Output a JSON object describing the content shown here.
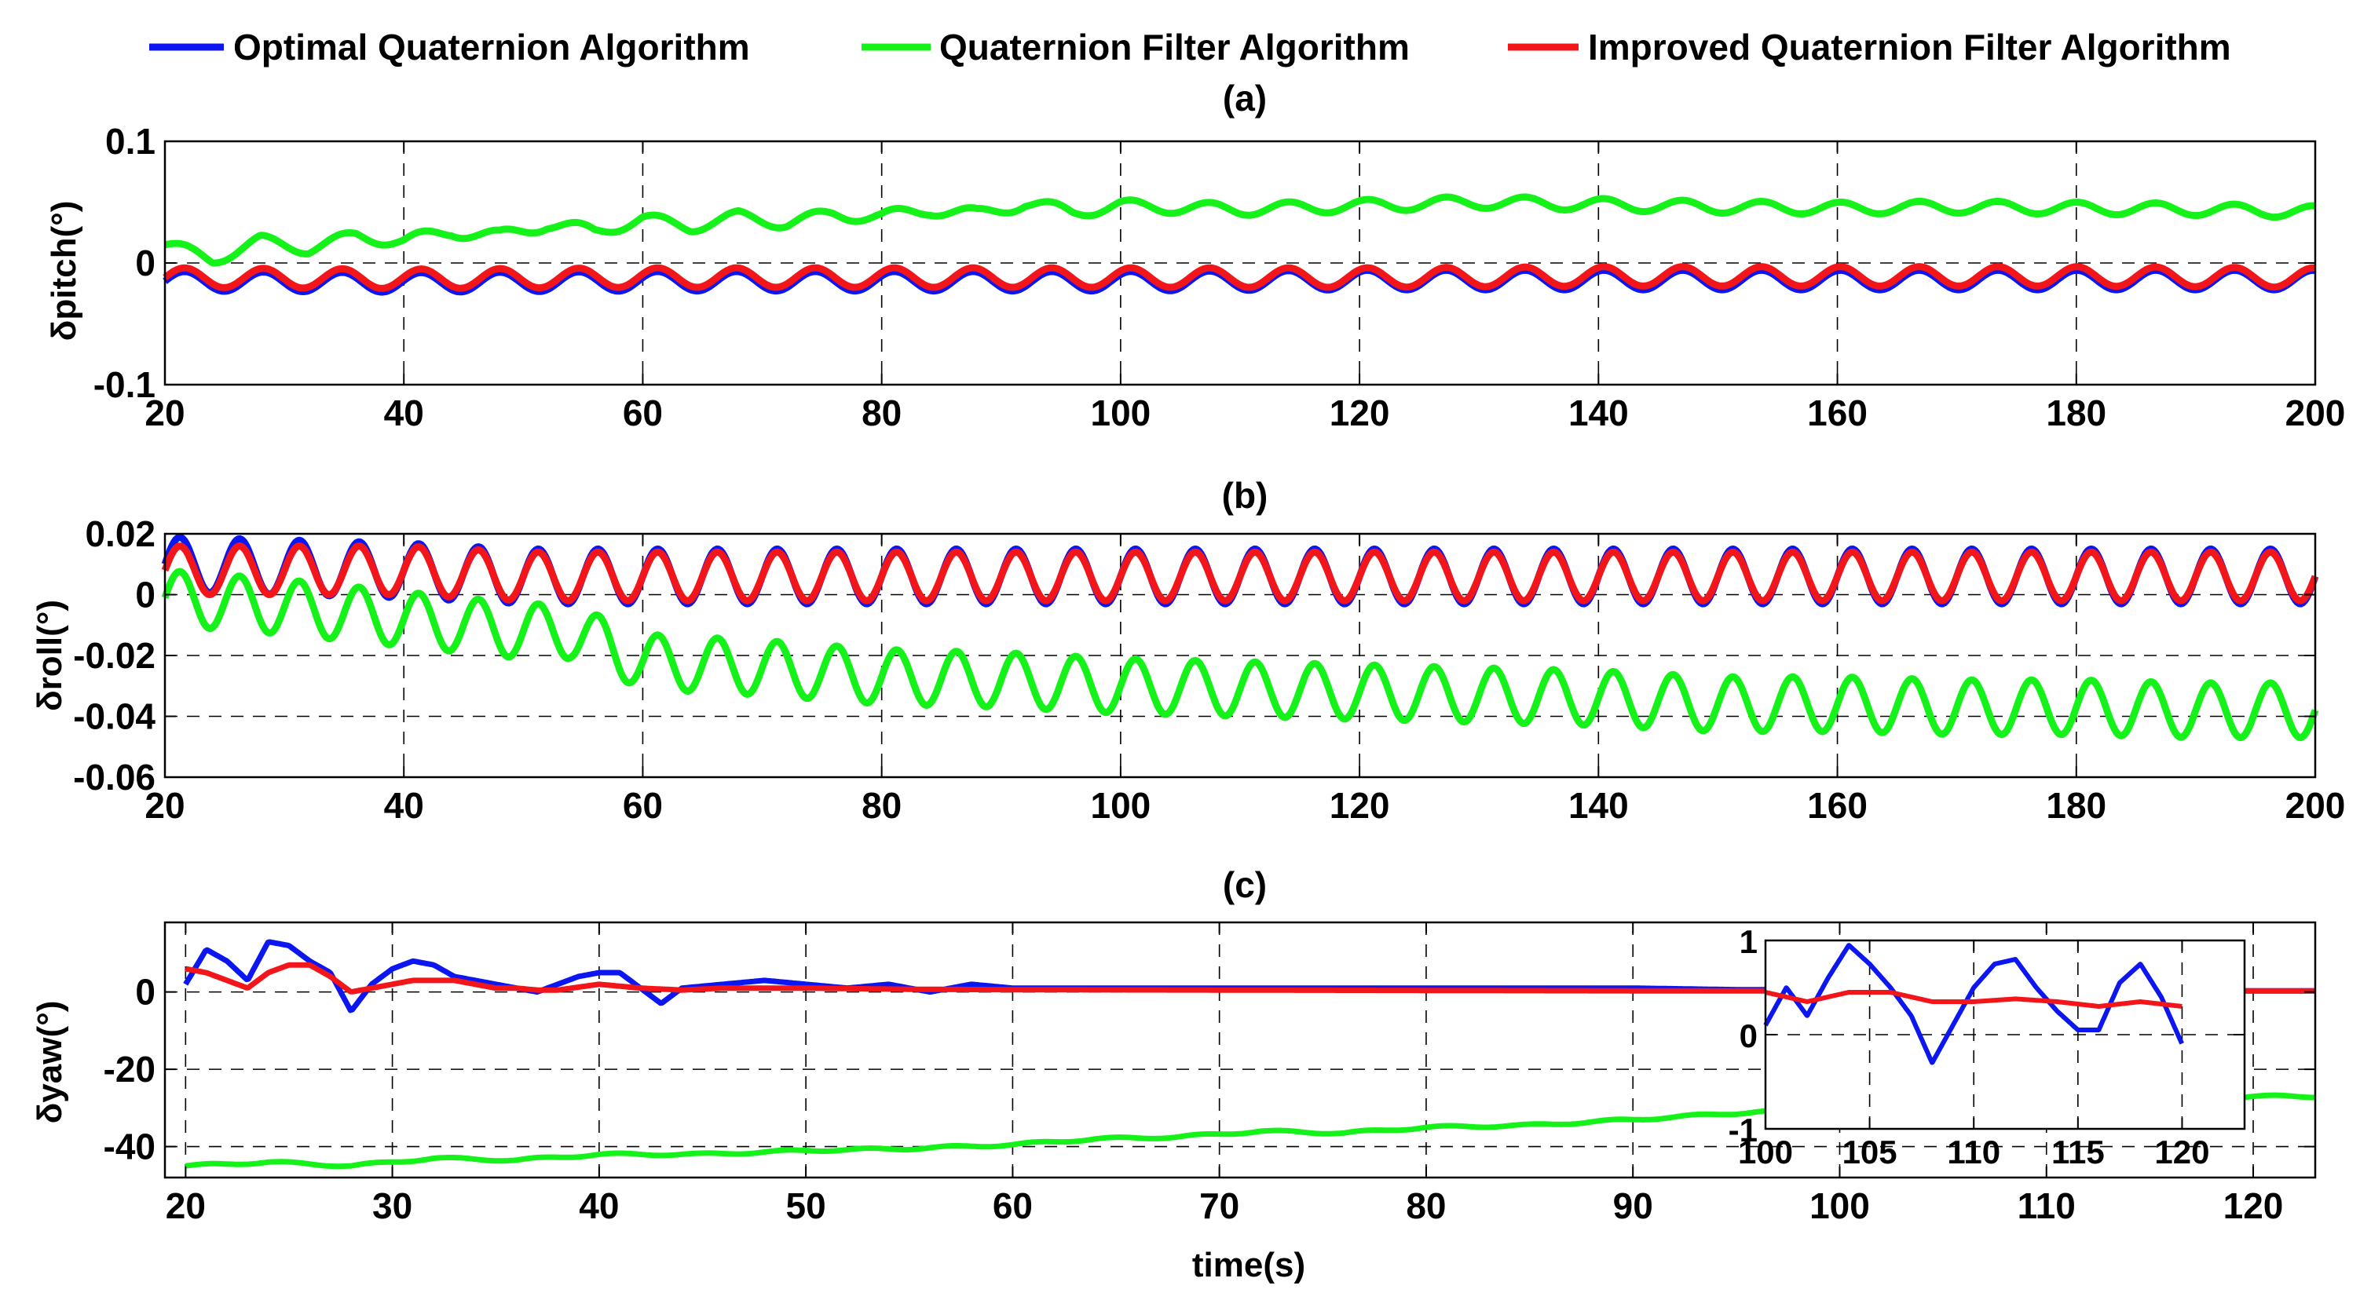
{
  "colors": {
    "optimal": "#0b16f0",
    "filter": "#15f21a",
    "improved": "#f2151a",
    "grid": "#000000",
    "axes": "#000000"
  },
  "legend": [
    {
      "key": "optimal",
      "label": "Optimal Quaternion Algorithm"
    },
    {
      "key": "filter",
      "label": "Quaternion Filter Algorithm"
    },
    {
      "key": "improved",
      "label": "Improved Quaternion Filter Algorithm"
    }
  ],
  "chart_data": [
    {
      "id": "a",
      "type": "line",
      "title": "(a)",
      "xlabel": "",
      "ylabel": "δpitch(°)",
      "xlim": [
        20,
        200
      ],
      "ylim": [
        -0.1,
        0.1
      ],
      "xticks": [
        20,
        40,
        60,
        80,
        100,
        120,
        140,
        160,
        180,
        200
      ],
      "xtick_labels": [
        "20",
        "40",
        "60",
        "80",
        "100",
        "120",
        "140",
        "160",
        "180",
        "200"
      ],
      "yticks": [
        -0.1,
        0,
        0.1
      ],
      "ytick_labels": [
        "-0.1",
        "0",
        "0.1"
      ],
      "series": [
        {
          "name": "Quaternion Filter Algorithm",
          "key": "filter",
          "x": [
            20,
            24,
            28,
            32,
            36,
            40,
            44,
            48,
            52,
            56,
            60,
            64,
            68,
            72,
            76,
            80,
            84,
            88,
            92,
            96,
            100,
            110,
            120,
            130,
            140,
            150,
            160,
            170,
            180,
            190,
            200
          ],
          "y": [
            0.015,
            0.003,
            0.018,
            0.012,
            0.022,
            0.018,
            0.026,
            0.022,
            0.032,
            0.026,
            0.036,
            0.03,
            0.038,
            0.033,
            0.04,
            0.038,
            0.044,
            0.04,
            0.049,
            0.042,
            0.047,
            0.044,
            0.047,
            0.05,
            0.048,
            0.046,
            0.045,
            0.046,
            0.045,
            0.044,
            0.042
          ],
          "osc": {
            "amp": 0.005,
            "period": 6.6
          }
        },
        {
          "name": "Optimal Quaternion Algorithm",
          "key": "optimal",
          "x": [
            20,
            40,
            60,
            80,
            100,
            120,
            140,
            160,
            180,
            200
          ],
          "y": [
            -0.015,
            -0.016,
            -0.015,
            -0.015,
            -0.015,
            -0.014,
            -0.014,
            -0.014,
            -0.014,
            -0.014
          ],
          "osc": {
            "amp": 0.008,
            "period": 6.6
          }
        },
        {
          "name": "Improved Quaternion Filter Algorithm",
          "key": "improved",
          "x": [
            20,
            40,
            60,
            80,
            100,
            120,
            140,
            160,
            180,
            200
          ],
          "y": [
            -0.012,
            -0.013,
            -0.012,
            -0.012,
            -0.012,
            -0.012,
            -0.011,
            -0.011,
            -0.011,
            -0.012
          ],
          "osc": {
            "amp": 0.008,
            "period": 6.6
          }
        }
      ]
    },
    {
      "id": "b",
      "type": "line",
      "title": "(b)",
      "xlabel": "",
      "ylabel": "δroll(°)",
      "xlim": [
        20,
        200
      ],
      "ylim": [
        -0.06,
        0.02
      ],
      "xticks": [
        20,
        40,
        60,
        80,
        100,
        120,
        140,
        160,
        180,
        200
      ],
      "xtick_labels": [
        "20",
        "40",
        "60",
        "80",
        "100",
        "120",
        "140",
        "160",
        "180",
        "200"
      ],
      "yticks": [
        -0.06,
        -0.04,
        -0.02,
        0,
        0.02
      ],
      "ytick_labels": [
        "-0.06",
        "-0.04",
        "-0.02",
        "0",
        "0.02"
      ],
      "series": [
        {
          "name": "Quaternion Filter Algorithm",
          "key": "filter",
          "x": [
            20,
            30,
            40,
            50,
            54,
            60,
            70,
            80,
            90,
            100,
            110,
            120,
            130,
            140,
            150,
            160,
            170,
            180,
            190,
            200
          ],
          "y": [
            -0.001,
            -0.004,
            -0.008,
            -0.012,
            -0.012,
            -0.022,
            -0.024,
            -0.027,
            -0.028,
            -0.03,
            -0.031,
            -0.032,
            -0.033,
            -0.034,
            -0.036,
            -0.036,
            -0.037,
            -0.037,
            -0.038,
            -0.038
          ],
          "osc": {
            "amp": 0.009,
            "period": 5.0
          }
        },
        {
          "name": "Optimal Quaternion Algorithm",
          "key": "optimal",
          "x": [
            20,
            40,
            50,
            60,
            80,
            100,
            120,
            140,
            160,
            180,
            200
          ],
          "y": [
            0.01,
            0.008,
            0.006,
            0.006,
            0.006,
            0.006,
            0.006,
            0.006,
            0.006,
            0.006,
            0.006
          ],
          "osc": {
            "amp": 0.009,
            "period": 5.0
          }
        },
        {
          "name": "Improved Quaternion Filter Algorithm",
          "key": "improved",
          "x": [
            20,
            40,
            50,
            60,
            80,
            100,
            120,
            140,
            160,
            180,
            200
          ],
          "y": [
            0.008,
            0.008,
            0.006,
            0.006,
            0.006,
            0.006,
            0.006,
            0.006,
            0.006,
            0.006,
            0.006
          ],
          "osc": {
            "amp": 0.008,
            "period": 5.0
          }
        }
      ]
    },
    {
      "id": "c",
      "type": "line",
      "title": "(c)",
      "xlabel": "time(s)",
      "ylabel": "δyaw(°)",
      "xlim": [
        19,
        123
      ],
      "ylim": [
        -48,
        18
      ],
      "xticks": [
        20,
        30,
        40,
        50,
        60,
        70,
        80,
        90,
        100,
        110,
        120
      ],
      "xtick_labels": [
        "20",
        "30",
        "40",
        "50",
        "60",
        "70",
        "80",
        "90",
        "100",
        "110",
        "120"
      ],
      "yticks": [
        -40,
        -20,
        0
      ],
      "ytick_labels": [
        "-40",
        "-20",
        "0"
      ],
      "series": [
        {
          "name": "Quaternion Filter Algorithm",
          "key": "filter",
          "x": [
            20,
            24,
            28,
            32,
            36,
            40,
            45,
            50,
            55,
            60,
            64,
            68,
            72,
            76,
            80,
            85,
            90,
            96,
            100,
            105,
            110,
            115,
            120,
            123
          ],
          "y": [
            -45,
            -44,
            -45,
            -43,
            -43.5,
            -42,
            -42,
            -41,
            -40.5,
            -39.5,
            -38,
            -37.5,
            -36,
            -36.5,
            -35,
            -34.5,
            -33,
            -31,
            -30.5,
            -29.5,
            -28.5,
            -28,
            -27,
            -27
          ],
          "osc": {
            "amp": 0.3,
            "period": 4.0
          }
        },
        {
          "name": "Optimal Quaternion Algorithm",
          "key": "optimal",
          "x": [
            20,
            21,
            22,
            23,
            24,
            25,
            26,
            27,
            28,
            29,
            30,
            31,
            32,
            33,
            34,
            35,
            36,
            37,
            38,
            39,
            40,
            41,
            42,
            43,
            44,
            46,
            48,
            50,
            52,
            54,
            56,
            58,
            60,
            65,
            70,
            75,
            80,
            85,
            90,
            95,
            100,
            110,
            123
          ],
          "y": [
            2,
            11,
            8,
            3,
            13,
            12,
            8,
            5,
            -5,
            2,
            6,
            8,
            7,
            4,
            3,
            2,
            1,
            0,
            2,
            4,
            5,
            5,
            1,
            -3,
            1,
            2,
            3,
            2,
            1,
            2,
            0,
            2,
            1,
            1,
            1,
            1,
            1,
            1,
            1,
            0.6,
            0.5,
            0.3,
            0.3
          ],
          "osc": {
            "amp": 0,
            "period": 4.0
          }
        },
        {
          "name": "Improved Quaternion Filter Algorithm",
          "key": "improved",
          "x": [
            20,
            21,
            22,
            23,
            24,
            25,
            26,
            27,
            28,
            29,
            30,
            31,
            32,
            33,
            34,
            35,
            36,
            37,
            38,
            40,
            42,
            44,
            46,
            50,
            55,
            60,
            70,
            80,
            90,
            100,
            110,
            123
          ],
          "y": [
            6,
            5,
            3,
            1,
            5,
            7,
            7,
            4,
            0,
            1,
            2,
            3,
            3,
            3,
            2,
            1,
            1,
            0.5,
            0.5,
            2,
            1,
            0.5,
            1,
            1,
            0.7,
            0.6,
            0.5,
            0.4,
            0.3,
            0.3,
            0.3,
            0.3
          ],
          "osc": {
            "amp": 0,
            "period": 4.0
          }
        }
      ],
      "inset": {
        "xlim": [
          100,
          123
        ],
        "ylim": [
          -1,
          1
        ],
        "xticks": [
          100,
          105,
          110,
          115,
          120
        ],
        "xtick_labels": [
          "100",
          "105",
          "110",
          "115",
          "120"
        ],
        "yticks": [
          -1,
          0,
          1
        ],
        "ytick_labels": [
          "-1",
          "0",
          "1"
        ],
        "series": [
          {
            "name": "Optimal Quaternion Algorithm",
            "key": "optimal",
            "x": [
              100,
              101,
              102,
              103,
              104,
              105,
              106,
              107,
              108,
              109,
              110,
              111,
              112,
              113,
              114,
              115,
              116,
              117,
              118,
              119,
              120
            ],
            "y": [
              0.1,
              0.5,
              0.2,
              0.6,
              0.95,
              0.75,
              0.5,
              0.2,
              -0.3,
              0.1,
              0.5,
              0.75,
              0.8,
              0.5,
              0.25,
              0.05,
              0.05,
              0.55,
              0.75,
              0.4,
              -0.1
            ]
          },
          {
            "name": "Improved Quaternion Filter Algorithm",
            "key": "improved",
            "x": [
              100,
              102,
              104,
              106,
              108,
              110,
              112,
              114,
              116,
              118,
              120
            ],
            "y": [
              0.45,
              0.35,
              0.45,
              0.45,
              0.35,
              0.35,
              0.38,
              0.35,
              0.3,
              0.35,
              0.3
            ]
          }
        ]
      }
    }
  ]
}
